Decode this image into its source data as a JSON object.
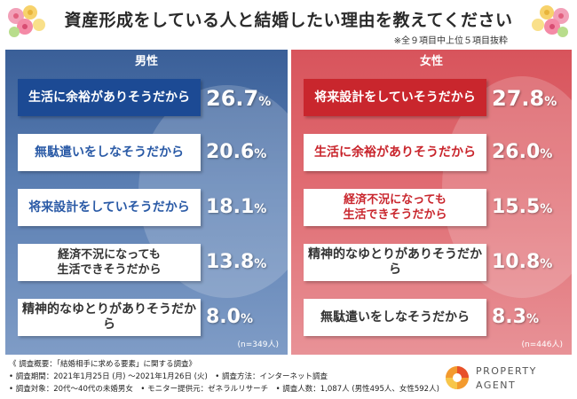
{
  "title": "資産形成をしている人と結婚したい理由を教えてください",
  "subtitle": "※全９項目中上位５項目抜粋",
  "male": {
    "heading": "男性",
    "sample": "(n=349人)",
    "items": [
      {
        "label": "生活に余裕がありそうだから",
        "value": "26.7",
        "unit": "%"
      },
      {
        "label": "無駄遣いをしなそうだから",
        "value": "20.6",
        "unit": "%"
      },
      {
        "label": "将来設計をしていそうだから",
        "value": "18.1",
        "unit": "%"
      },
      {
        "label": "経済不況になっても\n生活できそうだから",
        "value": "13.8",
        "unit": "%"
      },
      {
        "label": "精神的なゆとりがありそうだから",
        "value": "8.0",
        "unit": "%"
      }
    ]
  },
  "female": {
    "heading": "女性",
    "sample": "(n=446人)",
    "items": [
      {
        "label": "将来設計をしていそうだから",
        "value": "27.8",
        "unit": "%"
      },
      {
        "label": "生活に余裕がありそうだから",
        "value": "26.0",
        "unit": "%"
      },
      {
        "label": "経済不況になっても\n生活できそうだから",
        "value": "15.5",
        "unit": "%"
      },
      {
        "label": "精神的なゆとりがありそうだから",
        "value": "10.8",
        "unit": "%"
      },
      {
        "label": "無駄遣いをしなそうだから",
        "value": "8.3",
        "unit": "%"
      }
    ]
  },
  "chart_data": [
    {
      "type": "table",
      "title": "男性",
      "categories": [
        "生活に余裕がありそうだから",
        "無駄遣いをしなそうだから",
        "将来設計をしていそうだから",
        "経済不況になっても生活できそうだから",
        "精神的なゆとりがありそうだから"
      ],
      "values": [
        26.7,
        20.6,
        18.1,
        13.8,
        8.0
      ]
    },
    {
      "type": "table",
      "title": "女性",
      "categories": [
        "将来設計をしていそうだから",
        "生活に余裕がありそうだから",
        "経済不況になっても生活できそうだから",
        "精神的なゆとりがありそうだから",
        "無駄遣いをしなそうだから"
      ],
      "values": [
        27.8,
        26.0,
        15.5,
        10.8,
        8.3
      ]
    }
  ],
  "footer": {
    "line1": "《 調査概要：「結婚相手に求める要素」に関する調査》",
    "line2": "• 調査期間：2021年1月25日 (月) ～2021年1月26日 (火)　• 調査方法：インターネット調査",
    "line3": "• 調査対象：20代～40代の未婚男女　• モニター提供元：ゼネラルリサーチ　• 調査人数：1,087人 (男性495人、女性592人)"
  },
  "logo": {
    "line1": "PROPERTY",
    "line2": "AGENT"
  },
  "colors": {
    "male_dark": "#1c4a94",
    "female_dark": "#c9262d",
    "male_bg": "#5b7fb3",
    "female_bg": "#e06c72"
  }
}
